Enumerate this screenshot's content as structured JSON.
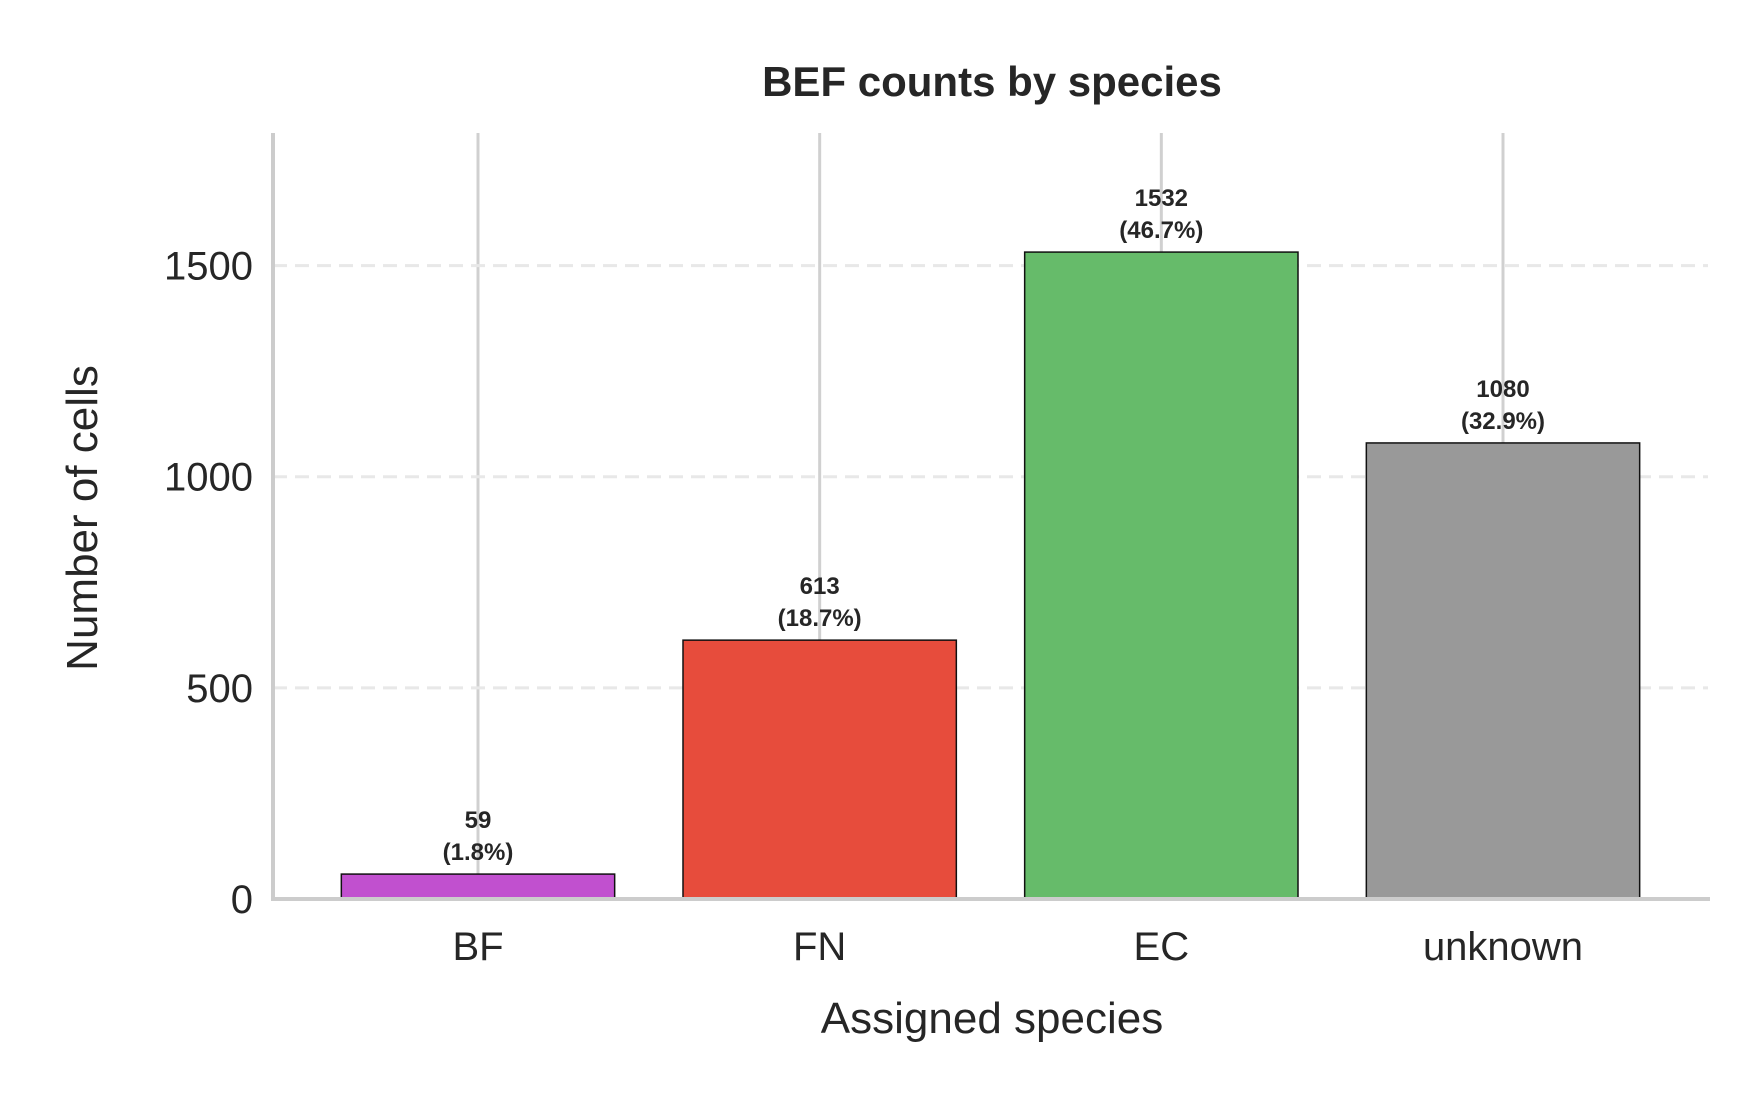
{
  "chart_data": {
    "type": "bar",
    "title": "BEF counts by species",
    "xlabel": "Assigned species",
    "ylabel": "Number of cells",
    "categories": [
      "BF",
      "FN",
      "EC",
      "unknown"
    ],
    "values": [
      59,
      613,
      1532,
      1080
    ],
    "value_labels": [
      "59",
      "613",
      "1532",
      "1080"
    ],
    "percent_labels": [
      "(1.8%)",
      "(18.7%)",
      "(46.7%)",
      "(32.9%)"
    ],
    "colors": [
      "#c150cf",
      "#e74c3c",
      "#66bb6a",
      "#999999"
    ],
    "yticks": [
      0,
      500,
      1000,
      1500
    ],
    "ytick_labels": [
      "0",
      "500",
      "1000",
      "1500"
    ],
    "ylim": [
      0,
      1814
    ],
    "grid": "y dashed, x solid",
    "legend": "none"
  }
}
